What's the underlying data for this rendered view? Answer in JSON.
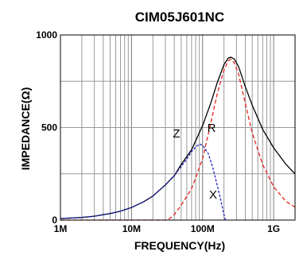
{
  "chart_data": {
    "type": "line",
    "title": "CIM05J601NC",
    "xlabel": "FREQUENCY(Hz)",
    "ylabel": "IMPEDANCE(Ω)",
    "x_scale": "log",
    "xlim": [
      "1M",
      "2G"
    ],
    "ylim": [
      0,
      1000
    ],
    "grid": true,
    "x_ticks": [
      {
        "label": "1M",
        "value": 1000000
      },
      {
        "label": "10M",
        "value": 10000000
      },
      {
        "label": "100M",
        "value": 100000000
      },
      {
        "label": "1G",
        "value": 1000000000
      }
    ],
    "y_ticks": [
      {
        "label": "0",
        "value": 0
      },
      {
        "label": "500",
        "value": 500
      },
      {
        "label": "1000",
        "value": 1000
      }
    ],
    "series": [
      {
        "name": "Z",
        "color": "#000000",
        "style": "solid",
        "x": [
          1000000,
          2000000,
          3000000,
          5000000,
          7000000,
          10000000,
          15000000,
          20000000,
          30000000,
          40000000,
          50000000,
          70000000,
          100000000,
          130000000,
          160000000,
          200000000,
          230000000,
          250000000,
          280000000,
          320000000,
          400000000,
          500000000,
          700000000,
          1000000000,
          1500000000,
          2000000000
        ],
        "y": [
          8,
          14,
          21,
          35,
          48,
          68,
          100,
          130,
          190,
          240,
          300,
          380,
          510,
          630,
          740,
          840,
          875,
          880,
          870,
          830,
          720,
          620,
          490,
          390,
          300,
          250
        ]
      },
      {
        "name": "R",
        "color": "#e8231e",
        "style": "dashed",
        "x": [
          1000000,
          10000000,
          30000000,
          35000000,
          40000000,
          50000000,
          70000000,
          100000000,
          130000000,
          160000000,
          200000000,
          230000000,
          250000000,
          280000000,
          320000000,
          400000000,
          500000000,
          700000000,
          1000000000,
          1500000000,
          2000000000
        ],
        "y": [
          0,
          0,
          0,
          10,
          30,
          80,
          170,
          330,
          520,
          680,
          810,
          860,
          870,
          850,
          790,
          630,
          470,
          300,
          180,
          100,
          70
        ]
      },
      {
        "name": "X",
        "color": "#1c1cbf",
        "style": "dotted",
        "x": [
          1000000,
          2000000,
          3000000,
          5000000,
          7000000,
          10000000,
          15000000,
          20000000,
          30000000,
          40000000,
          50000000,
          60000000,
          70000000,
          80000000,
          90000000,
          100000000,
          120000000,
          140000000,
          160000000,
          180000000,
          200000000,
          210000000
        ],
        "y": [
          8,
          14,
          21,
          35,
          48,
          68,
          100,
          130,
          190,
          240,
          290,
          330,
          370,
          395,
          410,
          405,
          360,
          280,
          190,
          110,
          30,
          0
        ]
      }
    ],
    "annotations": [
      {
        "text": "Z",
        "series": "Z"
      },
      {
        "text": "R",
        "series": "R"
      },
      {
        "text": "X",
        "series": "X"
      }
    ]
  }
}
